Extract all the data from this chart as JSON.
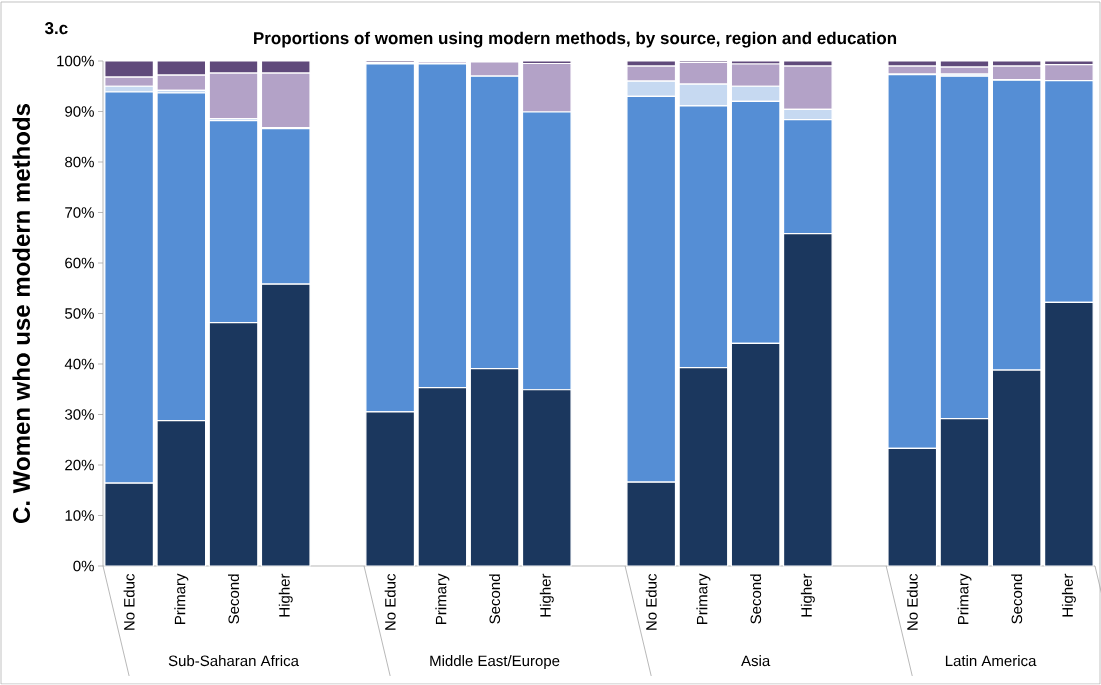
{
  "chart_data": {
    "type": "bar",
    "stacked": true,
    "title": "Proportions of women using modern methods, by source, region and education",
    "ylabel": "C. Women who use modern methods",
    "annotations": [
      "3.c",
      "Sub-Saharan  Africa",
      "Middle East/Europe",
      "Asia",
      "Latin America"
    ],
    "categories": [
      "No Educ",
      "Primary",
      "Second",
      "Higher",
      null,
      "No Educ",
      "Primary",
      "Second",
      "Higher",
      null,
      "No Educ",
      "Primary",
      "Second",
      "Higher",
      null,
      "No Educ",
      "Primary",
      "Second",
      "Higher"
    ],
    "series": [
      {
        "color": "#1b375e",
        "values": [
          16.4,
          28.8,
          48.2,
          55.8,
          null,
          30.5,
          35.3,
          39.1,
          34.9,
          null,
          16.6,
          39.3,
          44.1,
          65.8,
          null,
          23.3,
          29.2,
          38.8,
          52.2
        ]
      },
      {
        "color": "#558ed5",
        "values": [
          77.5,
          64.9,
          40.0,
          30.8,
          null,
          68.9,
          64.1,
          57.9,
          55.0,
          null,
          76.4,
          51.8,
          47.9,
          22.6,
          null,
          74.0,
          67.8,
          57.4,
          43.9
        ]
      },
      {
        "color": "#c6d9f1",
        "values": [
          1.1,
          0.5,
          0.4,
          0.2,
          null,
          0.1,
          0.1,
          0.0,
          0.0,
          null,
          3.0,
          4.3,
          3.0,
          2.0,
          null,
          0.1,
          0.4,
          0.1,
          0.0
        ]
      },
      {
        "color": "#b3a2c7",
        "values": [
          1.8,
          3.0,
          9.0,
          10.8,
          null,
          0.2,
          0.3,
          2.8,
          9.6,
          null,
          3.0,
          4.3,
          4.4,
          8.6,
          null,
          1.6,
          1.4,
          2.7,
          3.2
        ]
      },
      {
        "color": "#604a7b",
        "values": [
          3.2,
          2.8,
          2.4,
          2.4,
          null,
          0.3,
          0.2,
          0.2,
          0.5,
          null,
          1.0,
          0.3,
          0.6,
          1.0,
          null,
          1.0,
          1.2,
          1.0,
          0.7
        ]
      }
    ],
    "ylim": [
      0,
      100
    ],
    "yticks": [
      {
        "value": 0,
        "label": "0%"
      },
      {
        "value": 10,
        "label": "10%"
      },
      {
        "value": 20,
        "label": "20%"
      },
      {
        "value": 30,
        "label": "30%"
      },
      {
        "value": 40,
        "label": "40%"
      },
      {
        "value": 50,
        "label": "50%"
      },
      {
        "value": 60,
        "label": "60%"
      },
      {
        "value": 70,
        "label": "70%"
      },
      {
        "value": 80,
        "label": "80%"
      },
      {
        "value": 90,
        "label": "90%"
      },
      {
        "value": 100,
        "label": "100%"
      }
    ],
    "grid": false
  }
}
